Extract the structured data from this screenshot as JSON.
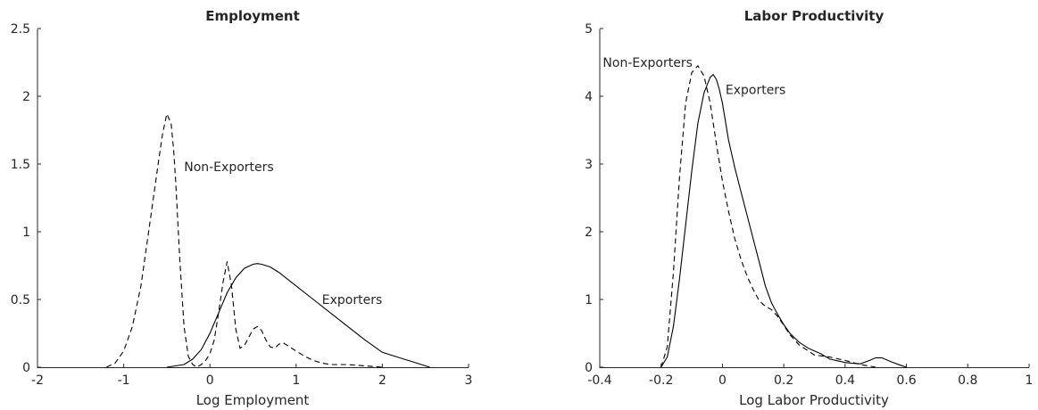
{
  "chart_data": [
    {
      "type": "line",
      "title": "Employment",
      "xlabel": "Log Employment",
      "ylabel": "",
      "xlim": [
        -2,
        3
      ],
      "ylim": [
        0,
        2.5
      ],
      "xticks": [
        -2,
        -1,
        0,
        1,
        2,
        3
      ],
      "yticks": [
        0,
        0.5,
        1,
        1.5,
        2,
        2.5
      ],
      "xtick_labels": [
        "-2",
        "-1",
        "0",
        "1",
        "2",
        "3"
      ],
      "ytick_labels": [
        "0",
        "0.5",
        "1",
        "1.5",
        "2",
        "2.5"
      ],
      "grid": false,
      "series": [
        {
          "name": "Non-Exporters",
          "style": "dashed",
          "x": [
            -1.2,
            -1.1,
            -1.0,
            -0.9,
            -0.8,
            -0.7,
            -0.6,
            -0.55,
            -0.5,
            -0.45,
            -0.42,
            -0.4,
            -0.35,
            -0.3,
            -0.25,
            -0.2,
            -0.15,
            -0.1,
            -0.05,
            0.0,
            0.05,
            0.1,
            0.15,
            0.2,
            0.25,
            0.3,
            0.35,
            0.4,
            0.45,
            0.5,
            0.55,
            0.6,
            0.65,
            0.7,
            0.75,
            0.8,
            0.85,
            0.9,
            1.0,
            1.1,
            1.2,
            1.3,
            1.4,
            1.6,
            1.8,
            2.0
          ],
          "y": [
            0.0,
            0.03,
            0.12,
            0.3,
            0.6,
            1.05,
            1.5,
            1.72,
            1.87,
            1.8,
            1.6,
            1.4,
            0.8,
            0.3,
            0.08,
            0.02,
            0.0,
            0.02,
            0.05,
            0.1,
            0.2,
            0.4,
            0.62,
            0.78,
            0.6,
            0.28,
            0.14,
            0.16,
            0.22,
            0.28,
            0.3,
            0.27,
            0.2,
            0.15,
            0.14,
            0.17,
            0.18,
            0.16,
            0.12,
            0.08,
            0.05,
            0.03,
            0.02,
            0.02,
            0.01,
            0.0
          ]
        },
        {
          "name": "Exporters",
          "style": "solid",
          "x": [
            -0.5,
            -0.3,
            -0.2,
            -0.1,
            0.0,
            0.1,
            0.2,
            0.3,
            0.4,
            0.5,
            0.55,
            0.6,
            0.7,
            0.8,
            0.9,
            1.0,
            1.2,
            1.4,
            1.6,
            1.8,
            2.0,
            2.2,
            2.4,
            2.55
          ],
          "y": [
            0.0,
            0.02,
            0.06,
            0.13,
            0.25,
            0.4,
            0.55,
            0.66,
            0.73,
            0.76,
            0.765,
            0.76,
            0.74,
            0.7,
            0.65,
            0.6,
            0.5,
            0.4,
            0.3,
            0.2,
            0.11,
            0.07,
            0.03,
            0.0
          ]
        }
      ],
      "annotations": [
        {
          "text": "Non-Exporters",
          "x": -0.3,
          "y": 1.48
        },
        {
          "text": "Exporters",
          "x": 1.3,
          "y": 0.5
        }
      ]
    },
    {
      "type": "line",
      "title": "Labor Productivity",
      "xlabel": "Log Labor Productivity",
      "ylabel": "",
      "xlim": [
        -0.4,
        1
      ],
      "ylim": [
        0,
        5
      ],
      "xticks": [
        -0.4,
        -0.2,
        0,
        0.2,
        0.4,
        0.6,
        0.8,
        1
      ],
      "yticks": [
        0,
        1,
        2,
        3,
        4,
        5
      ],
      "xtick_labels": [
        "-0.4",
        "-0.2",
        "0",
        "0.2",
        "0.4",
        "0.6",
        "0.8",
        "1"
      ],
      "ytick_labels": [
        "0",
        "1",
        "2",
        "3",
        "4",
        "5"
      ],
      "grid": false,
      "series": [
        {
          "name": "Non-Exporters",
          "style": "dashed",
          "x": [
            -0.2,
            -0.18,
            -0.16,
            -0.14,
            -0.12,
            -0.1,
            -0.08,
            -0.06,
            -0.04,
            -0.02,
            0.0,
            0.02,
            0.04,
            0.06,
            0.08,
            0.1,
            0.12,
            0.14,
            0.16,
            0.18,
            0.2,
            0.22,
            0.25,
            0.3,
            0.35,
            0.4,
            0.45,
            0.5
          ],
          "y": [
            0.0,
            0.3,
            1.4,
            2.8,
            3.9,
            4.35,
            4.45,
            4.3,
            3.9,
            3.3,
            2.75,
            2.3,
            1.9,
            1.6,
            1.35,
            1.15,
            0.98,
            0.9,
            0.85,
            0.75,
            0.62,
            0.48,
            0.33,
            0.18,
            0.15,
            0.1,
            0.04,
            0.0
          ]
        },
        {
          "name": "Exporters",
          "style": "solid",
          "x": [
            -0.2,
            -0.18,
            -0.16,
            -0.14,
            -0.12,
            -0.1,
            -0.08,
            -0.06,
            -0.04,
            -0.03,
            -0.02,
            -0.01,
            0.0,
            0.02,
            0.04,
            0.06,
            0.08,
            0.1,
            0.12,
            0.14,
            0.16,
            0.18,
            0.2,
            0.22,
            0.25,
            0.28,
            0.3,
            0.32,
            0.35,
            0.38,
            0.4,
            0.42,
            0.45,
            0.48,
            0.5,
            0.52,
            0.55,
            0.58,
            0.6
          ],
          "y": [
            0.0,
            0.15,
            0.6,
            1.3,
            2.1,
            2.9,
            3.6,
            4.05,
            4.28,
            4.32,
            4.25,
            4.1,
            3.9,
            3.35,
            2.95,
            2.6,
            2.25,
            1.9,
            1.55,
            1.2,
            0.95,
            0.78,
            0.63,
            0.5,
            0.37,
            0.28,
            0.24,
            0.2,
            0.12,
            0.09,
            0.07,
            0.06,
            0.05,
            0.1,
            0.14,
            0.14,
            0.08,
            0.03,
            0.0
          ]
        }
      ],
      "annotations": [
        {
          "text": "Non-Exporters",
          "x": -0.39,
          "y": 4.5
        },
        {
          "text": "Exporters",
          "x": 0.01,
          "y": 4.1
        }
      ]
    }
  ]
}
